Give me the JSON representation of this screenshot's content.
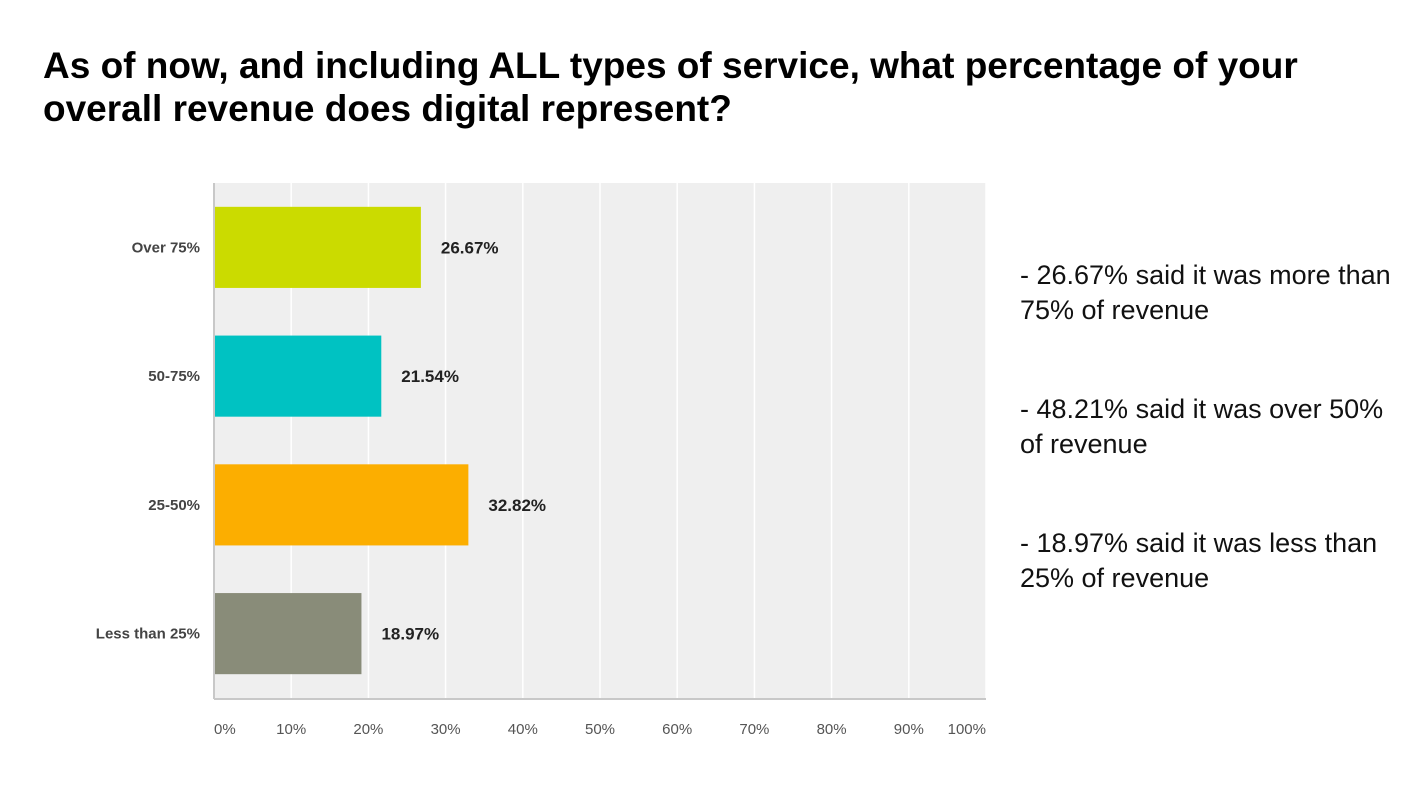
{
  "title": "As of now, and including ALL types of service, what percentage of your overall revenue does digital represent?",
  "notes": [
    "- 26.67% said it was more than 75% of revenue",
    "- 48.21% said it was over 50% of revenue",
    "- 18.97% said it was less than 25% of revenue"
  ],
  "chart_data": {
    "type": "bar",
    "orientation": "horizontal",
    "categories": [
      "Over 75%",
      "50-75%",
      "25-50%",
      "Less than 25%"
    ],
    "values": [
      26.67,
      21.54,
      32.82,
      18.97
    ],
    "value_labels": [
      "26.67%",
      "21.54%",
      "32.82%",
      "18.97%"
    ],
    "colors": [
      "#cbdb00",
      "#00c2c2",
      "#fcae00",
      "#898c79"
    ],
    "x_ticks": [
      "0%",
      "10%",
      "20%",
      "30%",
      "40%",
      "50%",
      "60%",
      "70%",
      "80%",
      "90%",
      "100%"
    ],
    "xlim": [
      0,
      100
    ],
    "grid": true,
    "plot_background": "#efefef",
    "grid_color": "#ffffff"
  }
}
